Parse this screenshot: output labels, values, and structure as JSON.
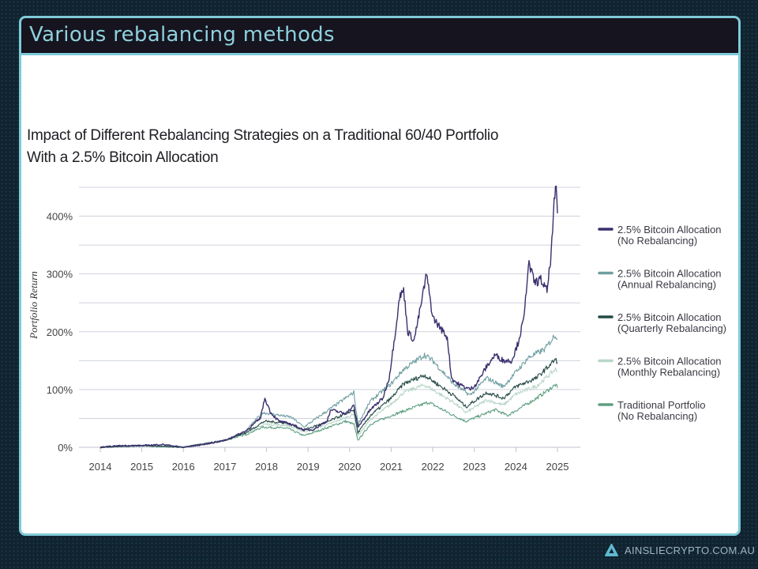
{
  "header": {
    "title": "Various rebalancing methods"
  },
  "footer": {
    "brand": "AINSLIECRYPTO.COM.AU"
  },
  "chart_data": {
    "type": "line",
    "title": [
      "Impact of Different Rebalancing Strategies on a Traditional 60/40 Portfolio",
      "With a 2.5% Bitcoin Allocation"
    ],
    "xlabel": "",
    "ylabel": "Portfolio Return",
    "xlim": [
      2013.5,
      2025.5
    ],
    "ylim": [
      0,
      450
    ],
    "x_ticks": [
      "2014",
      "2015",
      "2016",
      "2017",
      "2018",
      "2019",
      "2020",
      "2021",
      "2022",
      "2023",
      "2024",
      "2025"
    ],
    "y_ticks": [
      {
        "value": 0,
        "label": "0%"
      },
      {
        "value": 100,
        "label": "100%"
      },
      {
        "value": 200,
        "label": "200%"
      },
      {
        "value": 300,
        "label": "300%"
      },
      {
        "value": 400,
        "label": "400%"
      }
    ],
    "grid": true,
    "legend_position": "right",
    "series": [
      {
        "name": "2.5% Bitcoin Allocation (No Rebalancing)",
        "label1": "2.5% Bitcoin Allocation",
        "label2": "(No Rebalancing)",
        "color": "#3b2f6e",
        "points": [
          [
            2014,
            0
          ],
          [
            2014.5,
            3
          ],
          [
            2015,
            3
          ],
          [
            2015.5,
            5
          ],
          [
            2016,
            0
          ],
          [
            2016.5,
            5
          ],
          [
            2017,
            12
          ],
          [
            2017.5,
            28
          ],
          [
            2017.85,
            50
          ],
          [
            2017.96,
            85
          ],
          [
            2018.1,
            60
          ],
          [
            2018.3,
            45
          ],
          [
            2018.6,
            40
          ],
          [
            2018.9,
            30
          ],
          [
            2019.1,
            30
          ],
          [
            2019.45,
            45
          ],
          [
            2019.55,
            65
          ],
          [
            2019.9,
            58
          ],
          [
            2020.1,
            72
          ],
          [
            2020.2,
            35
          ],
          [
            2020.5,
            65
          ],
          [
            2020.8,
            85
          ],
          [
            2020.95,
            120
          ],
          [
            2021.1,
            200
          ],
          [
            2021.2,
            260
          ],
          [
            2021.3,
            272
          ],
          [
            2021.4,
            200
          ],
          [
            2021.55,
            185
          ],
          [
            2021.7,
            240
          ],
          [
            2021.85,
            300
          ],
          [
            2022,
            225
          ],
          [
            2022.2,
            205
          ],
          [
            2022.35,
            190
          ],
          [
            2022.45,
            120
          ],
          [
            2022.6,
            110
          ],
          [
            2022.9,
            100
          ],
          [
            2023.05,
            110
          ],
          [
            2023.3,
            140
          ],
          [
            2023.5,
            160
          ],
          [
            2023.7,
            150
          ],
          [
            2023.9,
            150
          ],
          [
            2024.05,
            180
          ],
          [
            2024.2,
            225
          ],
          [
            2024.3,
            320
          ],
          [
            2024.45,
            285
          ],
          [
            2024.6,
            290
          ],
          [
            2024.75,
            270
          ],
          [
            2024.85,
            335
          ],
          [
            2024.92,
            420
          ],
          [
            2024.97,
            450
          ],
          [
            2025,
            405
          ]
        ]
      },
      {
        "name": "2.5% Bitcoin Allocation (Annual Rebalancing)",
        "label1": "2.5% Bitcoin Allocation",
        "label2": "(Annual Rebalancing)",
        "color": "#6e9ea0",
        "points": [
          [
            2014,
            0
          ],
          [
            2015,
            3
          ],
          [
            2016,
            0
          ],
          [
            2017,
            12
          ],
          [
            2017.5,
            28
          ],
          [
            2017.9,
            60
          ],
          [
            2018.1,
            58
          ],
          [
            2018.6,
            52
          ],
          [
            2018.9,
            35
          ],
          [
            2019.5,
            65
          ],
          [
            2020.1,
            95
          ],
          [
            2020.2,
            40
          ],
          [
            2020.5,
            80
          ],
          [
            2021,
            110
          ],
          [
            2021.3,
            135
          ],
          [
            2021.8,
            160
          ],
          [
            2022,
            150
          ],
          [
            2022.5,
            110
          ],
          [
            2022.9,
            90
          ],
          [
            2023.3,
            120
          ],
          [
            2023.7,
            105
          ],
          [
            2024,
            130
          ],
          [
            2024.3,
            155
          ],
          [
            2024.7,
            170
          ],
          [
            2024.95,
            195
          ],
          [
            2025,
            188
          ]
        ]
      },
      {
        "name": "2.5% Bitcoin Allocation (Quarterly Rebalancing)",
        "label1": "2.5% Bitcoin Allocation",
        "label2": "(Quarterly Rebalancing)",
        "color": "#244a45",
        "points": [
          [
            2014,
            0
          ],
          [
            2015,
            3
          ],
          [
            2016,
            0
          ],
          [
            2017,
            12
          ],
          [
            2017.5,
            25
          ],
          [
            2017.95,
            45
          ],
          [
            2018.5,
            42
          ],
          [
            2018.9,
            30
          ],
          [
            2019.5,
            45
          ],
          [
            2020.1,
            65
          ],
          [
            2020.2,
            25
          ],
          [
            2020.5,
            55
          ],
          [
            2021,
            85
          ],
          [
            2021.3,
            110
          ],
          [
            2021.8,
            125
          ],
          [
            2022.5,
            90
          ],
          [
            2022.8,
            70
          ],
          [
            2023.3,
            95
          ],
          [
            2023.7,
            85
          ],
          [
            2024,
            105
          ],
          [
            2024.5,
            120
          ],
          [
            2024.95,
            152
          ],
          [
            2025,
            147
          ]
        ]
      },
      {
        "name": "2.5% Bitcoin Allocation (Monthly Rebalancing)",
        "label1": "2.5% Bitcoin Allocation",
        "label2": "(Monthly Rebalancing)",
        "color": "#b9d6c8",
        "points": [
          [
            2014,
            0
          ],
          [
            2015,
            3
          ],
          [
            2016,
            0
          ],
          [
            2017,
            12
          ],
          [
            2017.5,
            24
          ],
          [
            2017.95,
            40
          ],
          [
            2018.5,
            38
          ],
          [
            2018.9,
            27
          ],
          [
            2019.5,
            40
          ],
          [
            2020.1,
            57
          ],
          [
            2020.2,
            20
          ],
          [
            2020.5,
            48
          ],
          [
            2021,
            75
          ],
          [
            2021.3,
            95
          ],
          [
            2021.8,
            108
          ],
          [
            2022.5,
            78
          ],
          [
            2022.8,
            60
          ],
          [
            2023.3,
            82
          ],
          [
            2023.7,
            73
          ],
          [
            2024,
            92
          ],
          [
            2024.5,
            106
          ],
          [
            2024.95,
            135
          ],
          [
            2025,
            130
          ]
        ]
      },
      {
        "name": "Traditional Portfolio (No Rebalancing)",
        "label1": "Traditional Portfolio",
        "label2": "(No Rebalancing)",
        "color": "#5e9f80",
        "points": [
          [
            2014,
            0
          ],
          [
            2015,
            3
          ],
          [
            2016,
            0
          ],
          [
            2017,
            12
          ],
          [
            2017.5,
            22
          ],
          [
            2017.9,
            35
          ],
          [
            2018.5,
            33
          ],
          [
            2018.9,
            20
          ],
          [
            2019.9,
            45
          ],
          [
            2020.1,
            40
          ],
          [
            2020.2,
            12
          ],
          [
            2020.5,
            40
          ],
          [
            2021,
            55
          ],
          [
            2021.9,
            78
          ],
          [
            2022.5,
            55
          ],
          [
            2022.8,
            45
          ],
          [
            2023.5,
            65
          ],
          [
            2023.8,
            55
          ],
          [
            2024.5,
            85
          ],
          [
            2024.95,
            108
          ],
          [
            2025,
            103
          ]
        ]
      }
    ]
  }
}
